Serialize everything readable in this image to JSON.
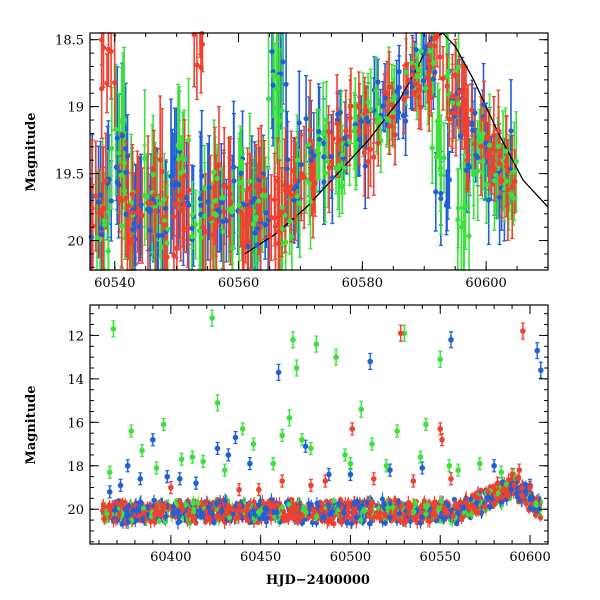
{
  "chart_data": [
    {
      "type": "scatter",
      "panel": "top",
      "title": "",
      "xlabel": "",
      "ylabel": "Magnitude",
      "xlim": [
        60536,
        60610
      ],
      "ylim": [
        20.22,
        18.45
      ],
      "y_inverted": true,
      "xticks": [
        60540,
        60560,
        60580,
        60600
      ],
      "yticks": [
        18.5,
        19,
        19.5,
        20
      ],
      "ytick_labels": [
        "18.5",
        "19",
        "19.5",
        "20"
      ],
      "grid": false,
      "legend": "none",
      "series": [
        {
          "color": "#1f5fd8",
          "points": [
            [
              60537.0,
              19.8,
              0.4
            ],
            [
              60539.5,
              19.6,
              0.35
            ],
            [
              60541.0,
              19.4,
              0.5
            ],
            [
              60543.0,
              19.9,
              0.4
            ],
            [
              60545.0,
              19.7,
              0.35
            ],
            [
              60547.5,
              19.8,
              0.4
            ],
            [
              60550.0,
              19.5,
              0.45
            ],
            [
              60552.0,
              19.9,
              0.4
            ],
            [
              60554.5,
              19.7,
              0.4
            ],
            [
              60557.0,
              19.8,
              0.35
            ],
            [
              60559.5,
              19.6,
              0.4
            ],
            [
              60562.0,
              19.9,
              0.4
            ],
            [
              60564.0,
              19.7,
              0.35
            ],
            [
              60566.5,
              18.7,
              0.5
            ],
            [
              60568.5,
              19.6,
              0.4
            ],
            [
              60571.0,
              19.3,
              0.3
            ],
            [
              60574.0,
              19.4,
              0.3
            ],
            [
              60577.0,
              19.2,
              0.25
            ],
            [
              60580.0,
              19.3,
              0.3
            ],
            [
              60583.0,
              19.0,
              0.2
            ],
            [
              60586.0,
              18.9,
              0.2
            ],
            [
              60589.0,
              18.7,
              0.25
            ],
            [
              60591.0,
              18.6,
              0.2
            ],
            [
              60593.0,
              19.7,
              0.35
            ],
            [
              60595.0,
              18.9,
              0.25
            ],
            [
              60597.0,
              19.3,
              0.3
            ],
            [
              60599.0,
              19.2,
              0.25
            ],
            [
              60601.0,
              19.5,
              0.3
            ],
            [
              60603.0,
              19.4,
              0.3
            ]
          ]
        },
        {
          "color": "#3ee03e",
          "points": [
            [
              60538.0,
              19.9,
              0.4
            ],
            [
              60540.5,
              19.3,
              0.5
            ],
            [
              60542.0,
              19.7,
              0.4
            ],
            [
              60545.5,
              19.6,
              0.4
            ],
            [
              60548.0,
              19.9,
              0.35
            ],
            [
              60551.0,
              19.4,
              0.45
            ],
            [
              60553.5,
              19.8,
              0.4
            ],
            [
              60556.0,
              19.7,
              0.4
            ],
            [
              60558.5,
              19.9,
              0.35
            ],
            [
              60561.0,
              19.6,
              0.4
            ],
            [
              60563.5,
              19.8,
              0.4
            ],
            [
              60566.0,
              18.9,
              0.45
            ],
            [
              60568.0,
              19.9,
              0.4
            ],
            [
              60570.5,
              19.5,
              0.35
            ],
            [
              60573.5,
              19.3,
              0.3
            ],
            [
              60576.0,
              19.4,
              0.3
            ],
            [
              60579.0,
              19.2,
              0.3
            ],
            [
              60582.0,
              19.1,
              0.25
            ],
            [
              60585.0,
              18.9,
              0.25
            ],
            [
              60588.0,
              18.8,
              0.2
            ],
            [
              60590.5,
              18.7,
              0.25
            ],
            [
              60592.5,
              19.3,
              0.4
            ],
            [
              60594.5,
              18.8,
              0.3
            ],
            [
              60596.5,
              19.8,
              0.4
            ],
            [
              60598.5,
              19.3,
              0.3
            ],
            [
              60600.5,
              19.4,
              0.3
            ],
            [
              60602.5,
              19.5,
              0.3
            ],
            [
              60604.5,
              19.6,
              0.3
            ]
          ]
        },
        {
          "color": "#f04030",
          "points": [
            [
              60537.5,
              19.7,
              0.4
            ],
            [
              60539.0,
              18.7,
              0.3
            ],
            [
              60541.5,
              19.9,
              0.4
            ],
            [
              60544.0,
              19.8,
              0.4
            ],
            [
              60546.5,
              19.6,
              0.4
            ],
            [
              60549.0,
              19.9,
              0.35
            ],
            [
              60551.5,
              19.7,
              0.4
            ],
            [
              60553.0,
              18.6,
              0.3
            ],
            [
              60555.5,
              19.8,
              0.4
            ],
            [
              60558.0,
              19.6,
              0.4
            ],
            [
              60560.5,
              19.9,
              0.35
            ],
            [
              60563.0,
              19.7,
              0.4
            ],
            [
              60565.5,
              19.8,
              0.35
            ],
            [
              60567.5,
              19.7,
              0.4
            ],
            [
              60569.5,
              19.6,
              0.3
            ],
            [
              60572.5,
              19.4,
              0.3
            ],
            [
              60575.5,
              19.3,
              0.3
            ],
            [
              60578.5,
              19.2,
              0.25
            ],
            [
              60581.5,
              19.2,
              0.25
            ],
            [
              60584.5,
              19.0,
              0.2
            ],
            [
              60587.5,
              18.9,
              0.2
            ],
            [
              60590.0,
              18.8,
              0.2
            ],
            [
              60592.0,
              18.7,
              0.25
            ],
            [
              60594.0,
              18.9,
              0.25
            ],
            [
              60596.0,
              19.1,
              0.25
            ],
            [
              60598.0,
              19.2,
              0.25
            ],
            [
              60600.0,
              19.3,
              0.3
            ],
            [
              60602.0,
              19.4,
              0.3
            ],
            [
              60604.0,
              19.5,
              0.3
            ]
          ]
        }
      ],
      "model_curve": {
        "color": "#000000",
        "points": [
          [
            60561,
            20.1
          ],
          [
            60566,
            19.95
          ],
          [
            60571,
            19.75
          ],
          [
            60576,
            19.5
          ],
          [
            60581,
            19.25
          ],
          [
            60586,
            18.95
          ],
          [
            60589,
            18.7
          ],
          [
            60591,
            18.5
          ],
          [
            60593,
            18.45
          ],
          [
            60595,
            18.55
          ],
          [
            60598,
            18.8
          ],
          [
            60602,
            19.2
          ],
          [
            60606,
            19.55
          ],
          [
            60610,
            19.75
          ]
        ]
      }
    },
    {
      "type": "scatter",
      "panel": "bottom",
      "title": "",
      "xlabel": "HJD−2400000",
      "ylabel": "Magnitude",
      "xlim": [
        60355,
        60610
      ],
      "ylim": [
        21.6,
        10.6
      ],
      "y_inverted": true,
      "xticks": [
        60400,
        60450,
        60500,
        60550,
        60600
      ],
      "yticks": [
        12,
        14,
        16,
        18,
        20
      ],
      "grid": false,
      "legend": "none",
      "baseline_band": {
        "x_range": [
          60362,
          60606
        ],
        "mag_center": 20.1,
        "scatter": 0.5
      },
      "series": [
        {
          "color": "#1f5fd8",
          "outliers": [
            [
              60366,
              19.2
            ],
            [
              60372,
              18.9
            ],
            [
              60376,
              18.0
            ],
            [
              60383,
              18.6
            ],
            [
              60390,
              16.8
            ],
            [
              60398,
              18.5
            ],
            [
              60405,
              18.6
            ],
            [
              60414,
              18.8
            ],
            [
              60426,
              17.2
            ],
            [
              60432,
              17.5
            ],
            [
              60436,
              16.7
            ],
            [
              60444,
              17.9
            ],
            [
              60460,
              13.7
            ],
            [
              60475,
              17.1
            ],
            [
              60488,
              18.4
            ],
            [
              60500,
              18.4
            ],
            [
              60511,
              13.2
            ],
            [
              60522,
              18.2
            ],
            [
              60540,
              18.1
            ],
            [
              60556,
              12.2
            ],
            [
              60580,
              18.0
            ],
            [
              60600,
              18.9
            ],
            [
              60604,
              12.7
            ],
            [
              60606,
              13.6
            ]
          ]
        },
        {
          "color": "#3ee03e",
          "outliers": [
            [
              60368,
              11.7
            ],
            [
              60366,
              18.3
            ],
            [
              60378,
              16.4
            ],
            [
              60384,
              17.3
            ],
            [
              60392,
              18.1
            ],
            [
              60396,
              16.1
            ],
            [
              60406,
              17.7
            ],
            [
              60412,
              17.6
            ],
            [
              60418,
              17.8
            ],
            [
              60423,
              11.2
            ],
            [
              60426,
              15.1
            ],
            [
              60430,
              18.2
            ],
            [
              60440,
              16.3
            ],
            [
              60446,
              17.0
            ],
            [
              60457,
              17.9
            ],
            [
              60462,
              16.6
            ],
            [
              60468,
              12.2
            ],
            [
              60470,
              13.5
            ],
            [
              60466,
              15.8
            ],
            [
              60473,
              16.8
            ],
            [
              60478,
              17.2
            ],
            [
              60481,
              12.4
            ],
            [
              60492,
              13.0
            ],
            [
              60497,
              17.5
            ],
            [
              60500,
              17.9
            ],
            [
              60506,
              15.4
            ],
            [
              60512,
              17.0
            ],
            [
              60520,
              18.0
            ],
            [
              60526,
              16.4
            ],
            [
              60530,
              11.9
            ],
            [
              60539,
              17.6
            ],
            [
              60542,
              16.1
            ],
            [
              60550,
              13.1
            ],
            [
              60555,
              18.0
            ],
            [
              60560,
              18.2
            ],
            [
              60572,
              17.9
            ],
            [
              60584,
              18.3
            ],
            [
              60591,
              18.4
            ]
          ]
        },
        {
          "color": "#f04030",
          "outliers": [
            [
              60400,
              19.0
            ],
            [
              60438,
              19.1
            ],
            [
              60449,
              19.1
            ],
            [
              60462,
              18.7
            ],
            [
              60478,
              18.9
            ],
            [
              60486,
              18.7
            ],
            [
              60501,
              16.3
            ],
            [
              60513,
              18.6
            ],
            [
              60528,
              11.9
            ],
            [
              60535,
              18.7
            ],
            [
              60550,
              16.3
            ],
            [
              60551,
              16.8
            ],
            [
              60556,
              18.6
            ],
            [
              60582,
              18.8
            ],
            [
              60590,
              18.4
            ],
            [
              60594,
              18.2
            ],
            [
              60596,
              11.8
            ],
            [
              60600,
              19.0
            ]
          ]
        }
      ]
    }
  ]
}
